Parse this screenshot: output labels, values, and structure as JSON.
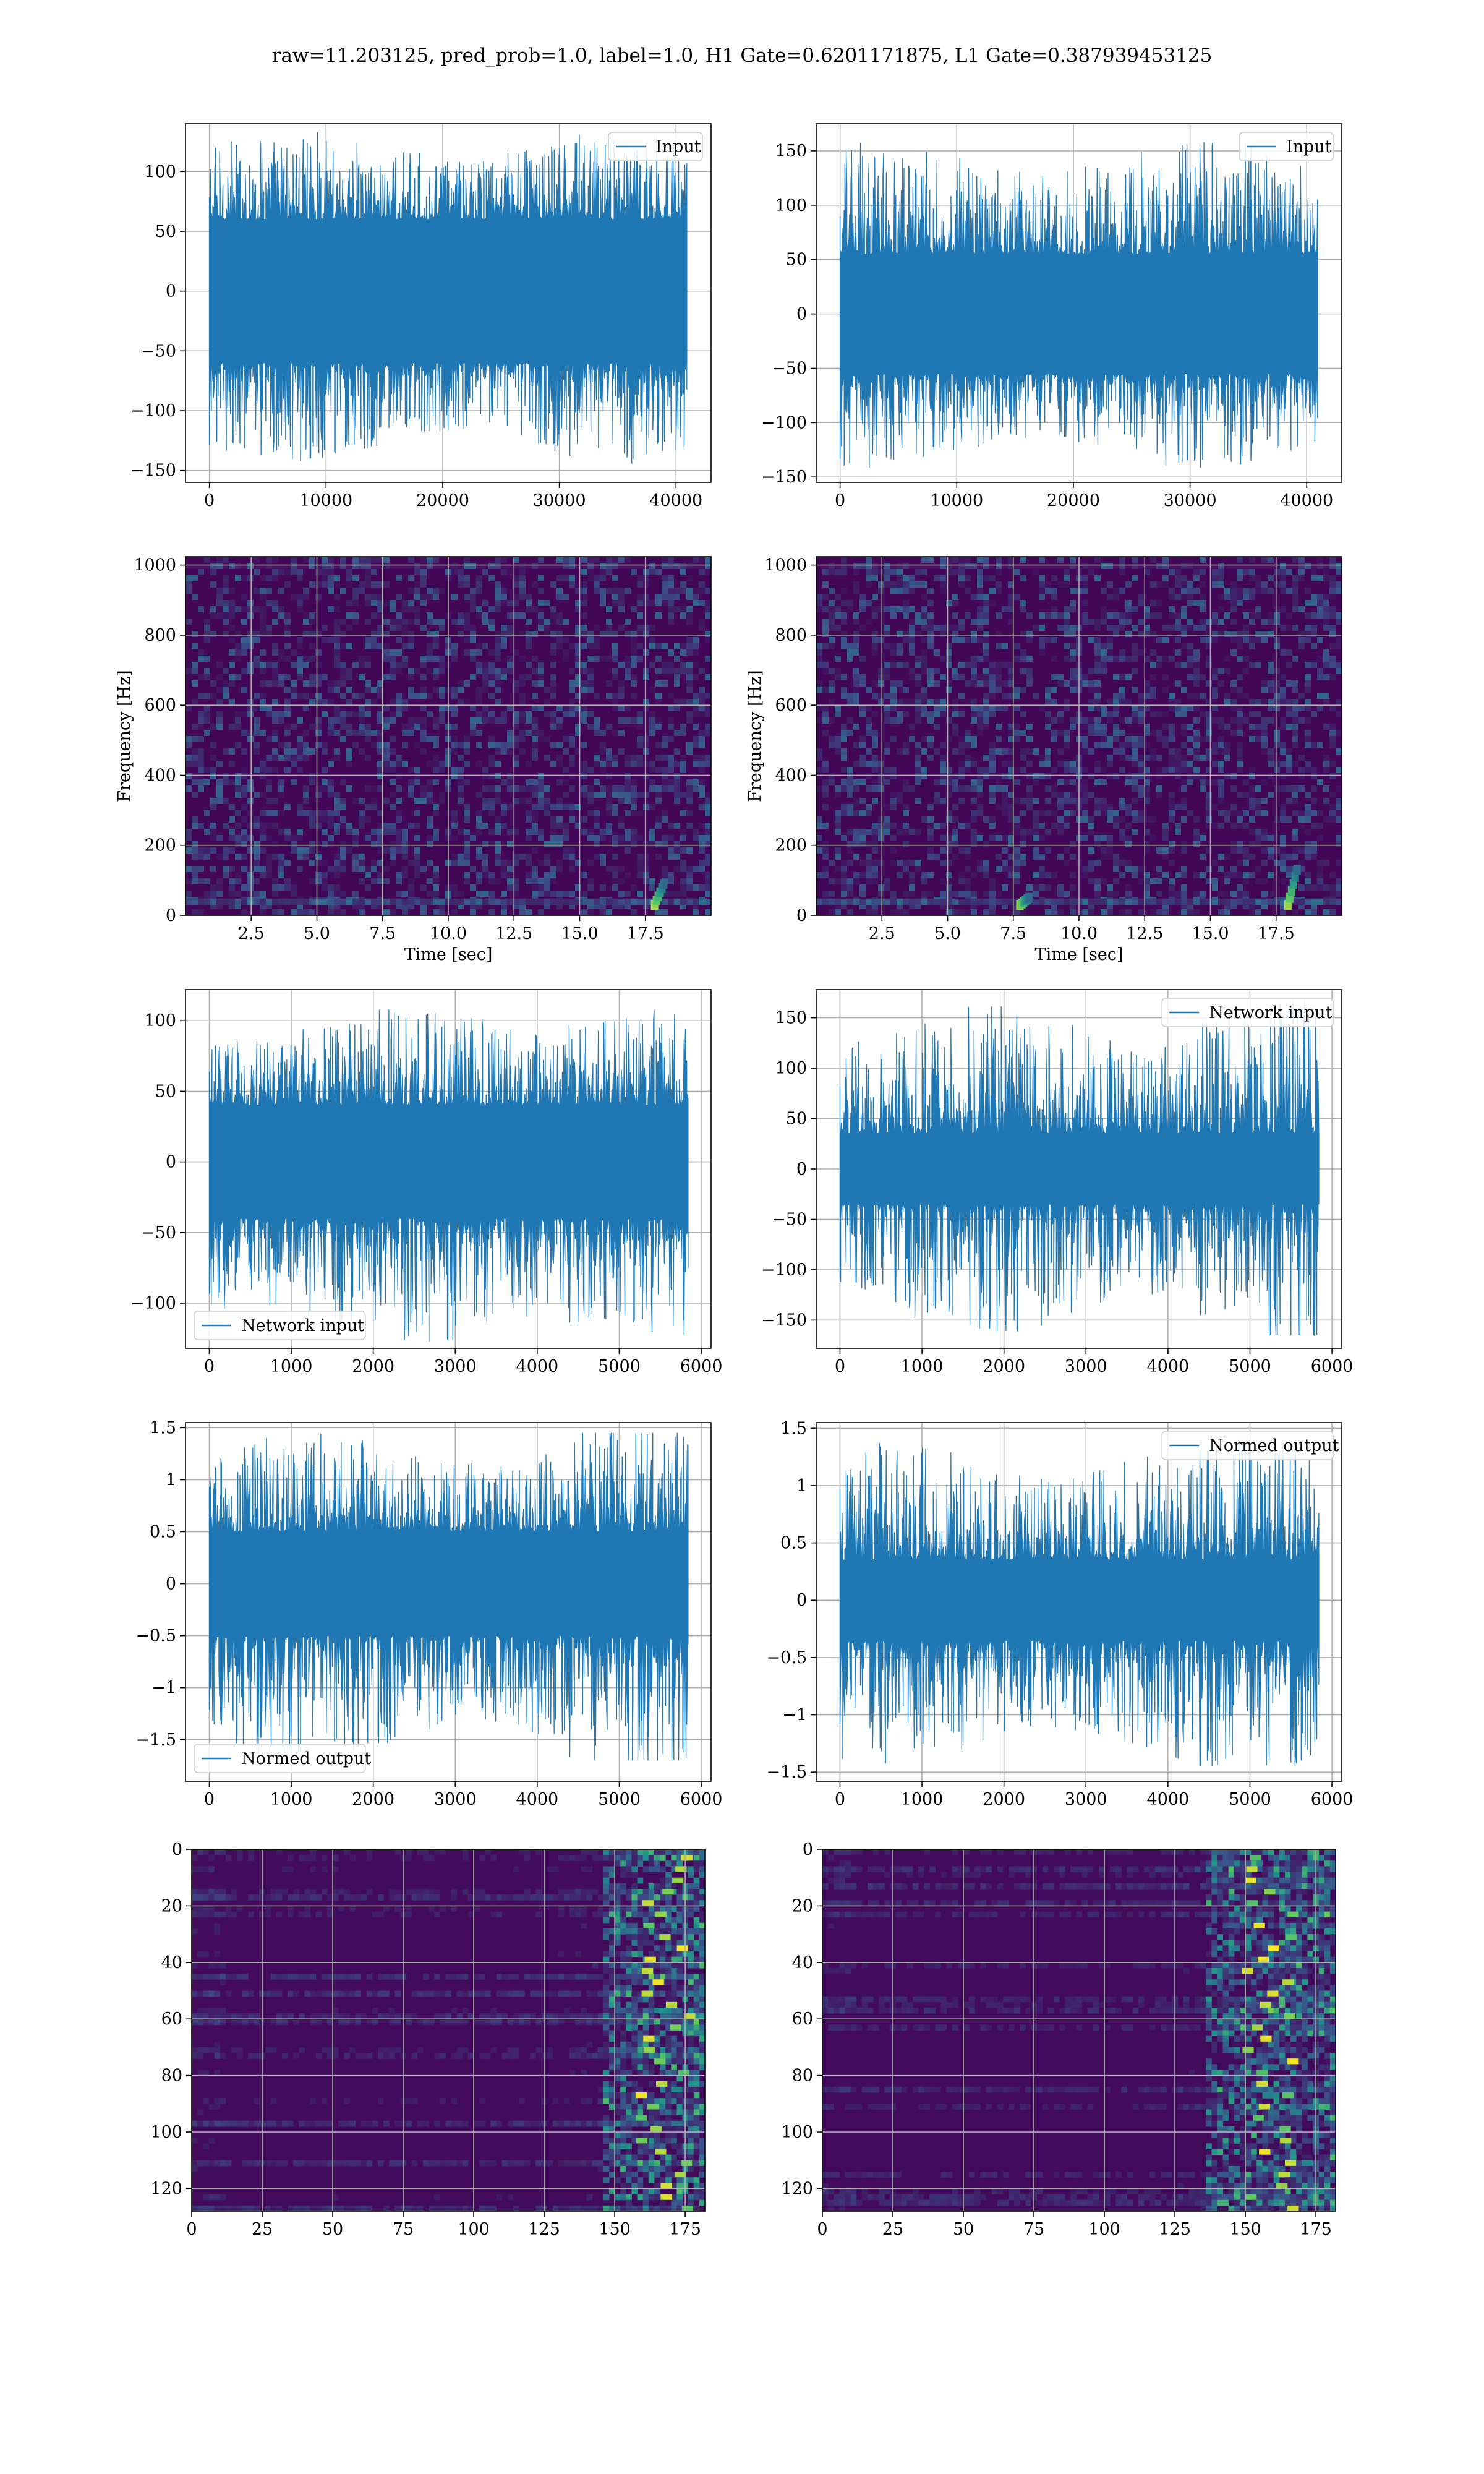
{
  "figure": {
    "title": "raw=11.203125, pred_prob=1.0, label=1.0, H1 Gate=0.6201171875, L1 Gate=0.387939453125",
    "colors": {
      "line": "#1f77b4",
      "grid": "#b0b0b0",
      "spine": "#000000"
    }
  },
  "chart_data": [
    {
      "type": "line",
      "legend": [
        "Input"
      ],
      "legend_loc": "upper right",
      "grid": true,
      "xlim": [
        -2048,
        43008
      ],
      "ylim": [
        -160,
        140
      ],
      "xticks": [
        0,
        10000,
        20000,
        30000,
        40000
      ],
      "yticks": [
        -150,
        -100,
        -50,
        0,
        50,
        100
      ],
      "series": [
        {
          "name": "Input",
          "n_samples": 40960,
          "envelope_min": -145,
          "envelope_max": 135,
          "band_min": -60,
          "band_max": 60,
          "x_start": 0,
          "x_end": 40960
        }
      ]
    },
    {
      "type": "line",
      "legend": [
        "Input"
      ],
      "legend_loc": "upper right",
      "grid": true,
      "xlim": [
        -2048,
        43008
      ],
      "ylim": [
        -155,
        175
      ],
      "xticks": [
        0,
        10000,
        20000,
        30000,
        40000
      ],
      "yticks": [
        -150,
        -100,
        -50,
        0,
        50,
        100,
        150
      ],
      "series": [
        {
          "name": "Input",
          "n_samples": 40960,
          "envelope_min": -143,
          "envelope_max": 162,
          "band_min": -55,
          "band_max": 55,
          "x_start": 0,
          "x_end": 40960
        }
      ]
    },
    {
      "type": "heatmap",
      "grid": true,
      "colormap": "viridis",
      "xlabel": "Time [sec]",
      "ylabel": "Frequency [Hz]",
      "xlim": [
        0,
        20
      ],
      "ylim": [
        0,
        1024
      ],
      "xticks": [
        2.5,
        5.0,
        7.5,
        10.0,
        12.5,
        15.0,
        17.5
      ],
      "xtick_labels": [
        "2.5",
        "5.0",
        "7.5",
        "10.0",
        "12.5",
        "15.0",
        "17.5"
      ],
      "yticks": [
        0,
        200,
        400,
        600,
        800,
        1000
      ],
      "features": [
        {
          "t": 18.1,
          "f_low": 30,
          "f_high": 90
        }
      ]
    },
    {
      "type": "heatmap",
      "grid": true,
      "colormap": "viridis",
      "xlabel": "Time [sec]",
      "ylabel": "Frequency [Hz]",
      "xlim": [
        0,
        20
      ],
      "ylim": [
        0,
        1024
      ],
      "xticks": [
        2.5,
        5.0,
        7.5,
        10.0,
        12.5,
        15.0,
        17.5
      ],
      "xtick_labels": [
        "2.5",
        "5.0",
        "7.5",
        "10.0",
        "12.5",
        "15.0",
        "17.5"
      ],
      "yticks": [
        0,
        200,
        400,
        600,
        800,
        1000
      ],
      "features": [
        {
          "t": 18.2,
          "f_low": 30,
          "f_high": 130
        },
        {
          "t": 8.0,
          "f_low": 30,
          "f_high": 50
        }
      ]
    },
    {
      "type": "line",
      "legend": [
        "Network input"
      ],
      "legend_loc": "lower left",
      "grid": true,
      "xlim": [
        -290,
        6120
      ],
      "ylim": [
        -132,
        122
      ],
      "xticks": [
        0,
        1000,
        2000,
        3000,
        4000,
        5000,
        6000
      ],
      "yticks": [
        -100,
        -50,
        0,
        50,
        100
      ],
      "series": [
        {
          "name": "Network input",
          "n_samples": 5840,
          "envelope_min": -130,
          "envelope_max": 110,
          "band_min": -40,
          "band_max": 40,
          "x_start": 0,
          "x_end": 5840
        }
      ]
    },
    {
      "type": "line",
      "legend": [
        "Network input"
      ],
      "legend_loc": "upper right",
      "grid": true,
      "xlim": [
        -290,
        6120
      ],
      "ylim": [
        -178,
        178
      ],
      "xticks": [
        0,
        1000,
        2000,
        3000,
        4000,
        5000,
        6000
      ],
      "yticks": [
        -150,
        -100,
        -50,
        0,
        50,
        100,
        150
      ],
      "series": [
        {
          "name": "Network input",
          "n_samples": 5840,
          "envelope_min": -165,
          "envelope_max": 165,
          "band_min": -35,
          "band_max": 35,
          "x_start": 0,
          "x_end": 5840
        }
      ]
    },
    {
      "type": "line",
      "legend": [
        "Normed output"
      ],
      "legend_loc": "lower left",
      "grid": true,
      "xlim": [
        -290,
        6120
      ],
      "ylim": [
        -1.9,
        1.55
      ],
      "xticks": [
        0,
        1000,
        2000,
        3000,
        4000,
        5000,
        6000
      ],
      "yticks": [
        -1.5,
        -1.0,
        -0.5,
        0.0,
        0.5,
        1.0,
        1.5
      ],
      "series": [
        {
          "name": "Normed output",
          "n_samples": 5840,
          "envelope_min": -1.7,
          "envelope_max": 1.45,
          "band_min": -0.5,
          "band_max": 0.5,
          "x_start": 0,
          "x_end": 5840
        }
      ]
    },
    {
      "type": "line",
      "legend": [
        "Normed output"
      ],
      "legend_loc": "upper right",
      "grid": true,
      "xlim": [
        -290,
        6120
      ],
      "ylim": [
        -1.58,
        1.55
      ],
      "xticks": [
        0,
        1000,
        2000,
        3000,
        4000,
        5000,
        6000
      ],
      "yticks": [
        -1.5,
        -1.0,
        -0.5,
        0.0,
        0.5,
        1.0,
        1.5
      ],
      "series": [
        {
          "name": "Normed output",
          "n_samples": 5840,
          "envelope_min": -1.45,
          "envelope_max": 1.4,
          "band_min": -0.35,
          "band_max": 0.35,
          "x_start": 0,
          "x_end": 5840
        }
      ]
    },
    {
      "type": "heatmap",
      "grid": true,
      "colormap": "viridis",
      "xlim": [
        0,
        182
      ],
      "ylim": [
        128,
        0
      ],
      "xticks": [
        0,
        25,
        50,
        75,
        100,
        125,
        150,
        175
      ],
      "yticks": [
        0,
        20,
        40,
        60,
        80,
        100,
        120
      ],
      "rows": 128,
      "cols": 182,
      "hot_region": {
        "col_start": 145,
        "col_end": 182
      }
    },
    {
      "type": "heatmap",
      "grid": true,
      "colormap": "viridis",
      "xlim": [
        0,
        182
      ],
      "ylim": [
        128,
        0
      ],
      "xticks": [
        0,
        25,
        50,
        75,
        100,
        125,
        150,
        175
      ],
      "yticks": [
        0,
        20,
        40,
        60,
        80,
        100,
        120
      ],
      "rows": 128,
      "cols": 182,
      "hot_region": {
        "col_start": 135,
        "col_end": 182
      }
    }
  ]
}
